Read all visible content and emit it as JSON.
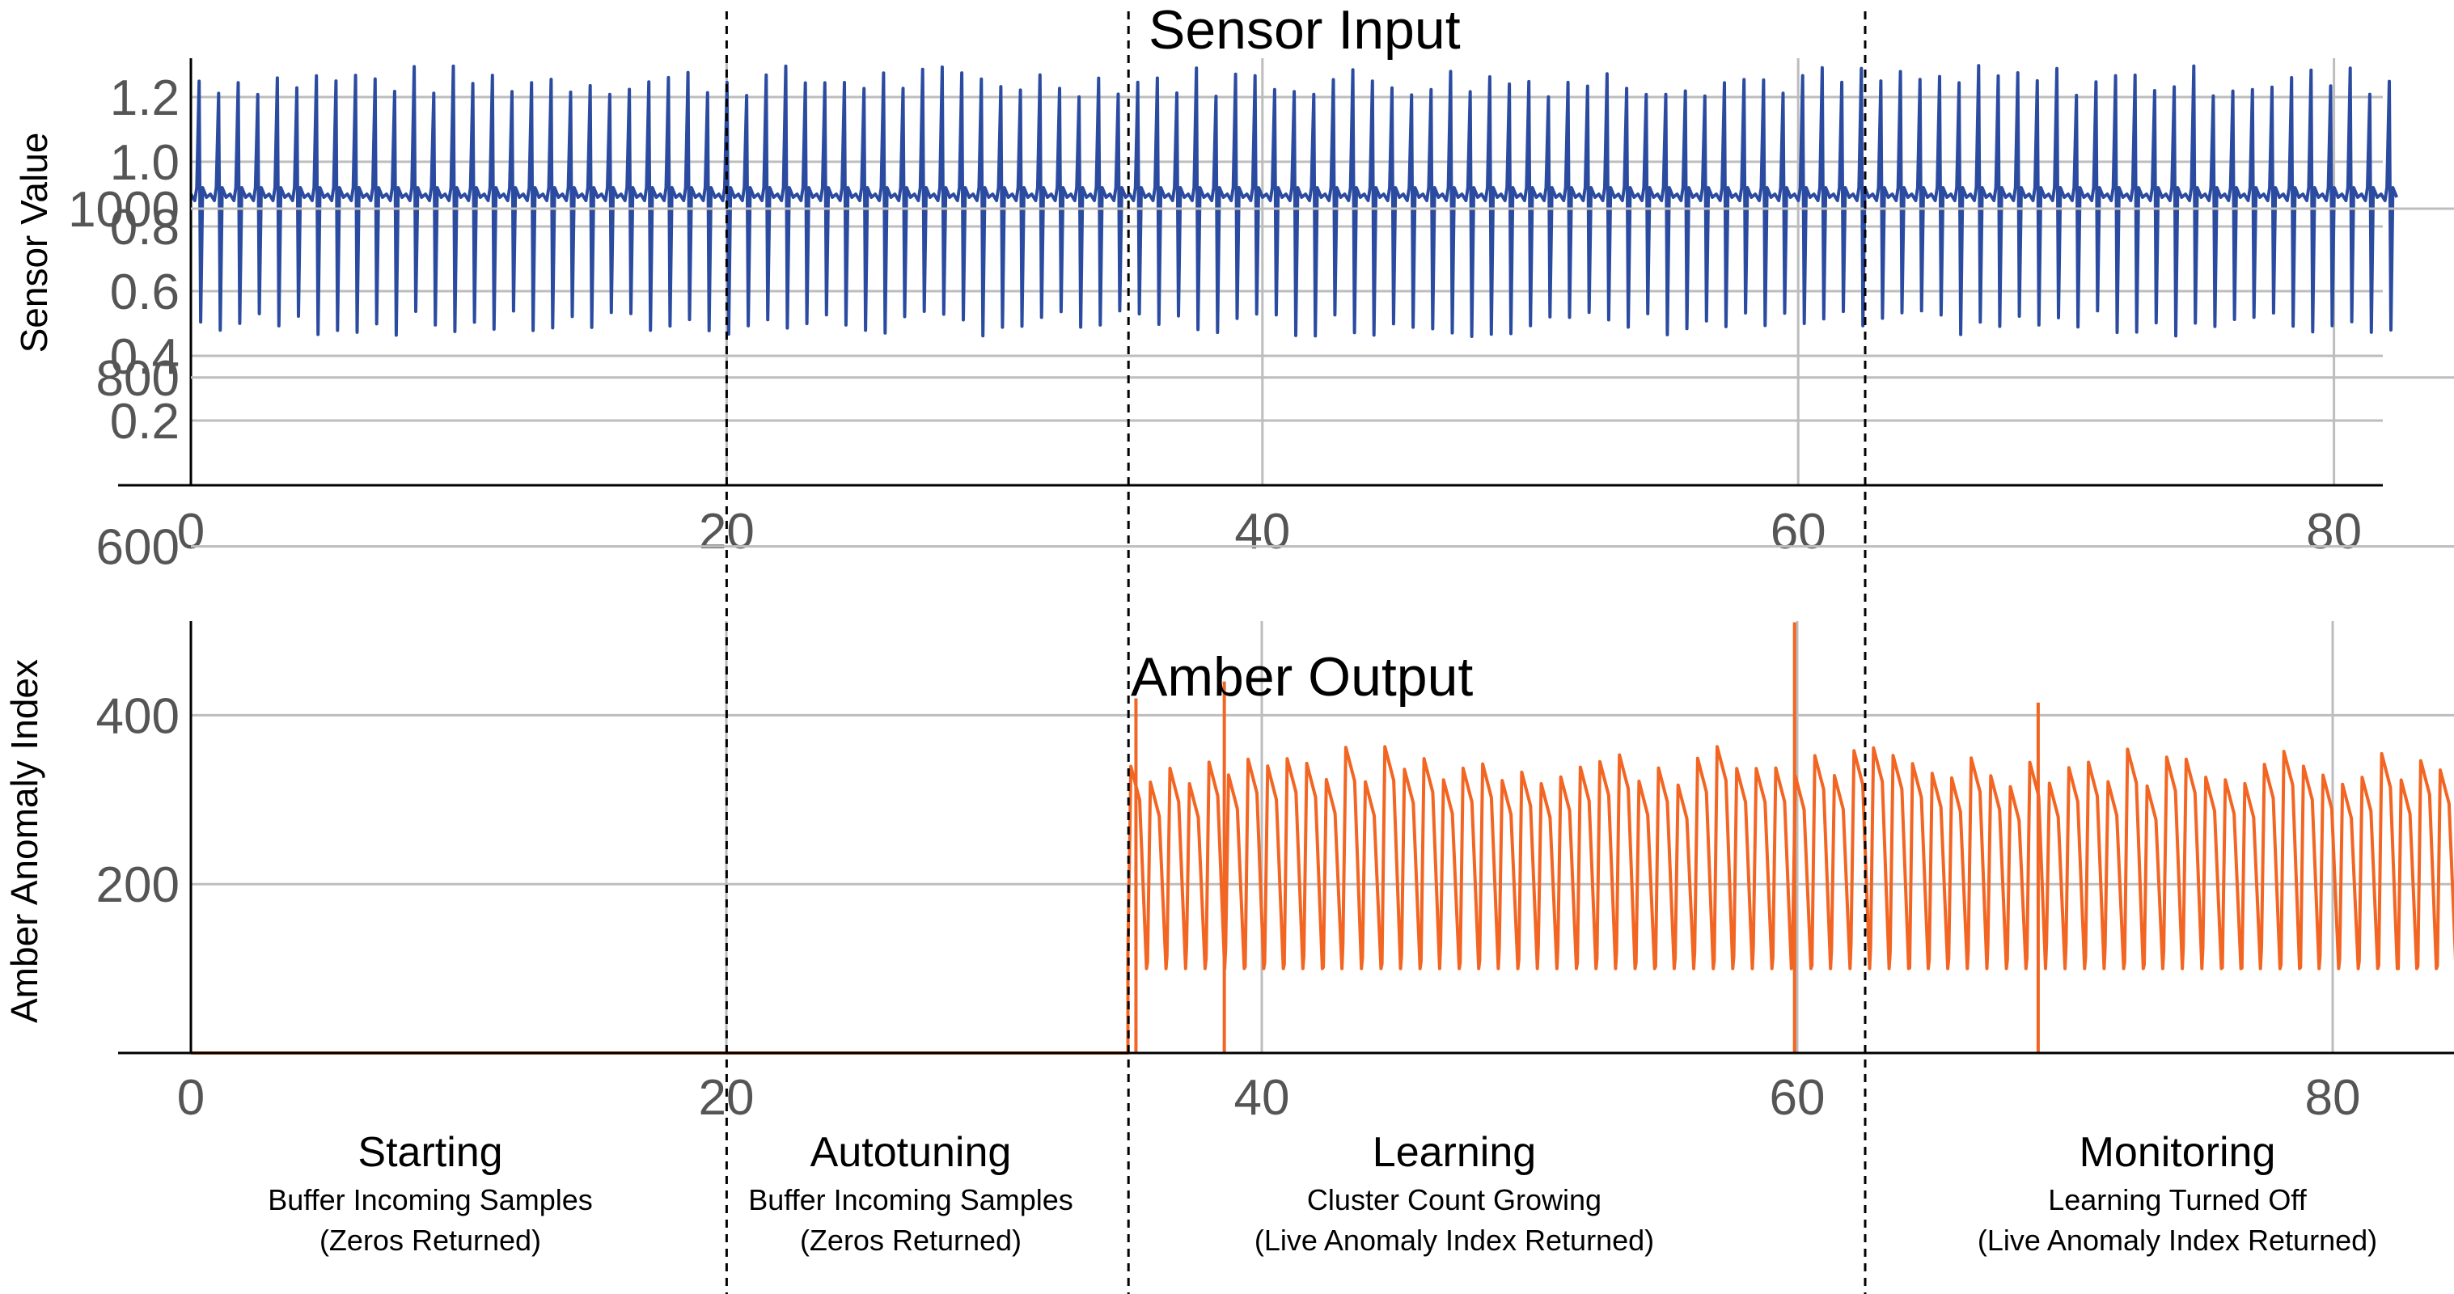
{
  "chart_data": [
    {
      "type": "line",
      "title": "Sensor Input",
      "ylabel": "Sensor Value",
      "xlabel": "",
      "xlim": [
        0,
        82
      ],
      "ylim": [
        0,
        1.3
      ],
      "x_ticks": [
        "0",
        "20",
        "40",
        "60",
        "80"
      ],
      "y_ticks": [
        "0.2",
        "0.4",
        "0.6",
        "0.8",
        "1.0",
        "1.2"
      ],
      "grid": true,
      "color": "#2b4ba0",
      "series": [
        {
          "pattern": "periodic",
          "period": 0.73,
          "baseline": 0.9,
          "peak": 1.25,
          "trough": 0.5,
          "x_start": 0,
          "x_end": 82
        }
      ]
    },
    {
      "type": "line",
      "title": "Amber Output",
      "ylabel": "Amber Anomaly Index",
      "xlabel": "",
      "xlim": [
        0,
        85
      ],
      "ylim": [
        0,
        1000
      ],
      "x_ticks": [
        "0",
        "20",
        "40",
        "60",
        "80"
      ],
      "y_ticks": [
        "200",
        "400",
        "600",
        "800",
        "1000"
      ],
      "grid": true,
      "color": "#f26522",
      "series": [
        {
          "pattern": "zero-then-periodic",
          "zero_until": 35,
          "period": 0.73,
          "high": 340,
          "low": 100,
          "x_end": 85,
          "spikes": [
            {
              "x": 35.3,
              "y": 420
            },
            {
              "x": 38.6,
              "y": 440
            },
            {
              "x": 59.9,
              "y": 510
            },
            {
              "x": 69.0,
              "y": 415
            }
          ]
        }
      ]
    }
  ],
  "phases": [
    {
      "name": "Starting",
      "desc1": "Buffer Incoming Samples",
      "desc2": "(Zeros Returned)"
    },
    {
      "name": "Autotuning",
      "desc1": "Buffer Incoming Samples",
      "desc2": "(Zeros Returned)"
    },
    {
      "name": "Learning",
      "desc1": "Cluster Count Growing",
      "desc2": "(Live Anomaly Index Returned)"
    },
    {
      "name": "Monitoring",
      "desc1": "Learning Turned Off",
      "desc2": "(Live Anomaly Index Returned)"
    }
  ],
  "phase_boundaries": [
    20,
    35,
    62.5
  ]
}
